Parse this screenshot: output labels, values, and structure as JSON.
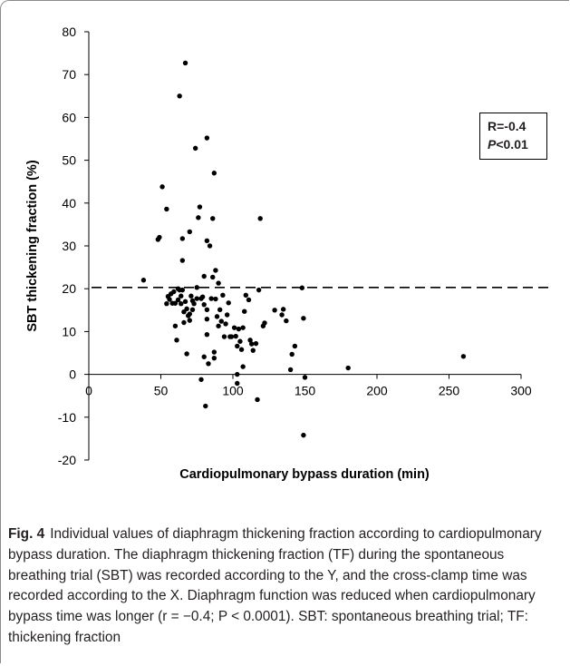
{
  "stats": {
    "r_line": "R=-0.4",
    "p_letter": "P",
    "p_rest": "<0.01"
  },
  "caption": {
    "label": "Fig. 4",
    "text": "Individual values of diaphragm thickening fraction according to cardiopulmonary bypass duration. The diaphragm thickening fraction (TF) during the spontaneous breathing trial (SBT) was recorded according to the Y, and the cross-clamp time was recorded according to the X. Diaphragm function was reduced when cardiopulmonary bypass time was longer (r = −0.4; P < 0.0001). SBT: spontaneous breathing trial; TF: thickening fraction"
  },
  "chart_data": {
    "type": "scatter",
    "xlabel": "Cardiopulmonary bypass duration (min)",
    "ylabel": "SBT thickening  fraction (%)",
    "xlim": [
      0,
      300
    ],
    "ylim": [
      -20,
      80
    ],
    "x_ticks": [
      "0",
      "50",
      "100",
      "150",
      "200",
      "250",
      "300"
    ],
    "y_ticks": [
      "80",
      "70",
      "60",
      "50",
      "40",
      "30",
      "20",
      "10",
      "0",
      "-10",
      "-20"
    ],
    "reference_line": {
      "y": 20.3,
      "style": "dashed"
    },
    "grid": false,
    "points": [
      [
        38,
        22
      ],
      [
        48,
        31.5
      ],
      [
        49,
        32
      ],
      [
        51,
        43.8
      ],
      [
        54,
        38.6
      ],
      [
        54,
        16.5
      ],
      [
        55,
        18.2
      ],
      [
        56,
        17.5
      ],
      [
        57,
        18.8
      ],
      [
        58,
        16.6
      ],
      [
        59,
        19.3
      ],
      [
        60,
        16.6
      ],
      [
        60,
        11.3
      ],
      [
        61,
        8
      ],
      [
        62,
        20
      ],
      [
        62,
        17.4
      ],
      [
        63,
        65
      ],
      [
        63,
        19.7
      ],
      [
        64,
        16.5
      ],
      [
        64,
        18.3
      ],
      [
        65,
        26.6
      ],
      [
        65,
        31.7
      ],
      [
        65,
        19.7
      ],
      [
        66,
        14.6
      ],
      [
        66,
        12.1
      ],
      [
        67,
        72.7
      ],
      [
        67,
        17
      ],
      [
        68,
        4.8
      ],
      [
        68,
        15.3
      ],
      [
        69,
        13.7
      ],
      [
        70,
        33.3
      ],
      [
        70,
        14.1
      ],
      [
        70,
        12.6
      ],
      [
        71,
        18.3
      ],
      [
        72,
        15.1
      ],
      [
        72,
        17.2
      ],
      [
        73,
        16.5
      ],
      [
        74,
        52.8
      ],
      [
        75,
        20.3
      ],
      [
        75,
        17.7
      ],
      [
        76,
        36.6
      ],
      [
        77,
        39.1
      ],
      [
        78,
        17.7
      ],
      [
        78,
        -1.2
      ],
      [
        79,
        18.1
      ],
      [
        80,
        22.9
      ],
      [
        80,
        16.3
      ],
      [
        80,
        4.1
      ],
      [
        81,
        -7.4
      ],
      [
        82,
        31.2
      ],
      [
        82,
        12.9
      ],
      [
        82,
        9.3
      ],
      [
        82,
        55.2
      ],
      [
        82,
        15.1
      ],
      [
        83,
        2.5
      ],
      [
        84,
        30
      ],
      [
        85,
        17.7
      ],
      [
        86,
        36.4
      ],
      [
        86,
        22.7
      ],
      [
        87,
        47
      ],
      [
        87,
        5.2
      ],
      [
        87,
        3.8
      ],
      [
        88,
        24.3
      ],
      [
        88,
        17.6
      ],
      [
        89,
        13.5
      ],
      [
        90,
        21.3
      ],
      [
        90,
        11.3
      ],
      [
        91,
        15.1
      ],
      [
        92,
        12.4
      ],
      [
        93,
        18.5
      ],
      [
        94,
        8.8
      ],
      [
        95,
        11.8
      ],
      [
        96,
        13.9
      ],
      [
        97,
        16.7
      ],
      [
        98,
        8.8
      ],
      [
        99,
        8.8
      ],
      [
        101,
        10.9
      ],
      [
        102,
        8.9
      ],
      [
        103,
        6.6
      ],
      [
        103,
        0
      ],
      [
        103,
        -2.1
      ],
      [
        104,
        10.6
      ],
      [
        105,
        7.7
      ],
      [
        106,
        5.8
      ],
      [
        107,
        10.9
      ],
      [
        107,
        1.8
      ],
      [
        108,
        14.7
      ],
      [
        109,
        18.5
      ],
      [
        111,
        17.4
      ],
      [
        112,
        8
      ],
      [
        113,
        7.1
      ],
      [
        114,
        5.6
      ],
      [
        116,
        7.2
      ],
      [
        117,
        -5.9
      ],
      [
        118,
        19.7
      ],
      [
        119,
        36.4
      ],
      [
        121,
        11.3
      ],
      [
        122,
        12
      ],
      [
        129,
        15
      ],
      [
        134,
        13.9
      ],
      [
        135,
        15.2
      ],
      [
        137,
        12.5
      ],
      [
        140,
        1.1
      ],
      [
        141,
        4.7
      ],
      [
        143,
        6.6
      ],
      [
        148,
        20.2
      ],
      [
        149,
        13.1
      ],
      [
        149,
        -14.2
      ],
      [
        150,
        -0.7
      ],
      [
        180,
        1.5
      ],
      [
        260,
        4.2
      ]
    ]
  }
}
